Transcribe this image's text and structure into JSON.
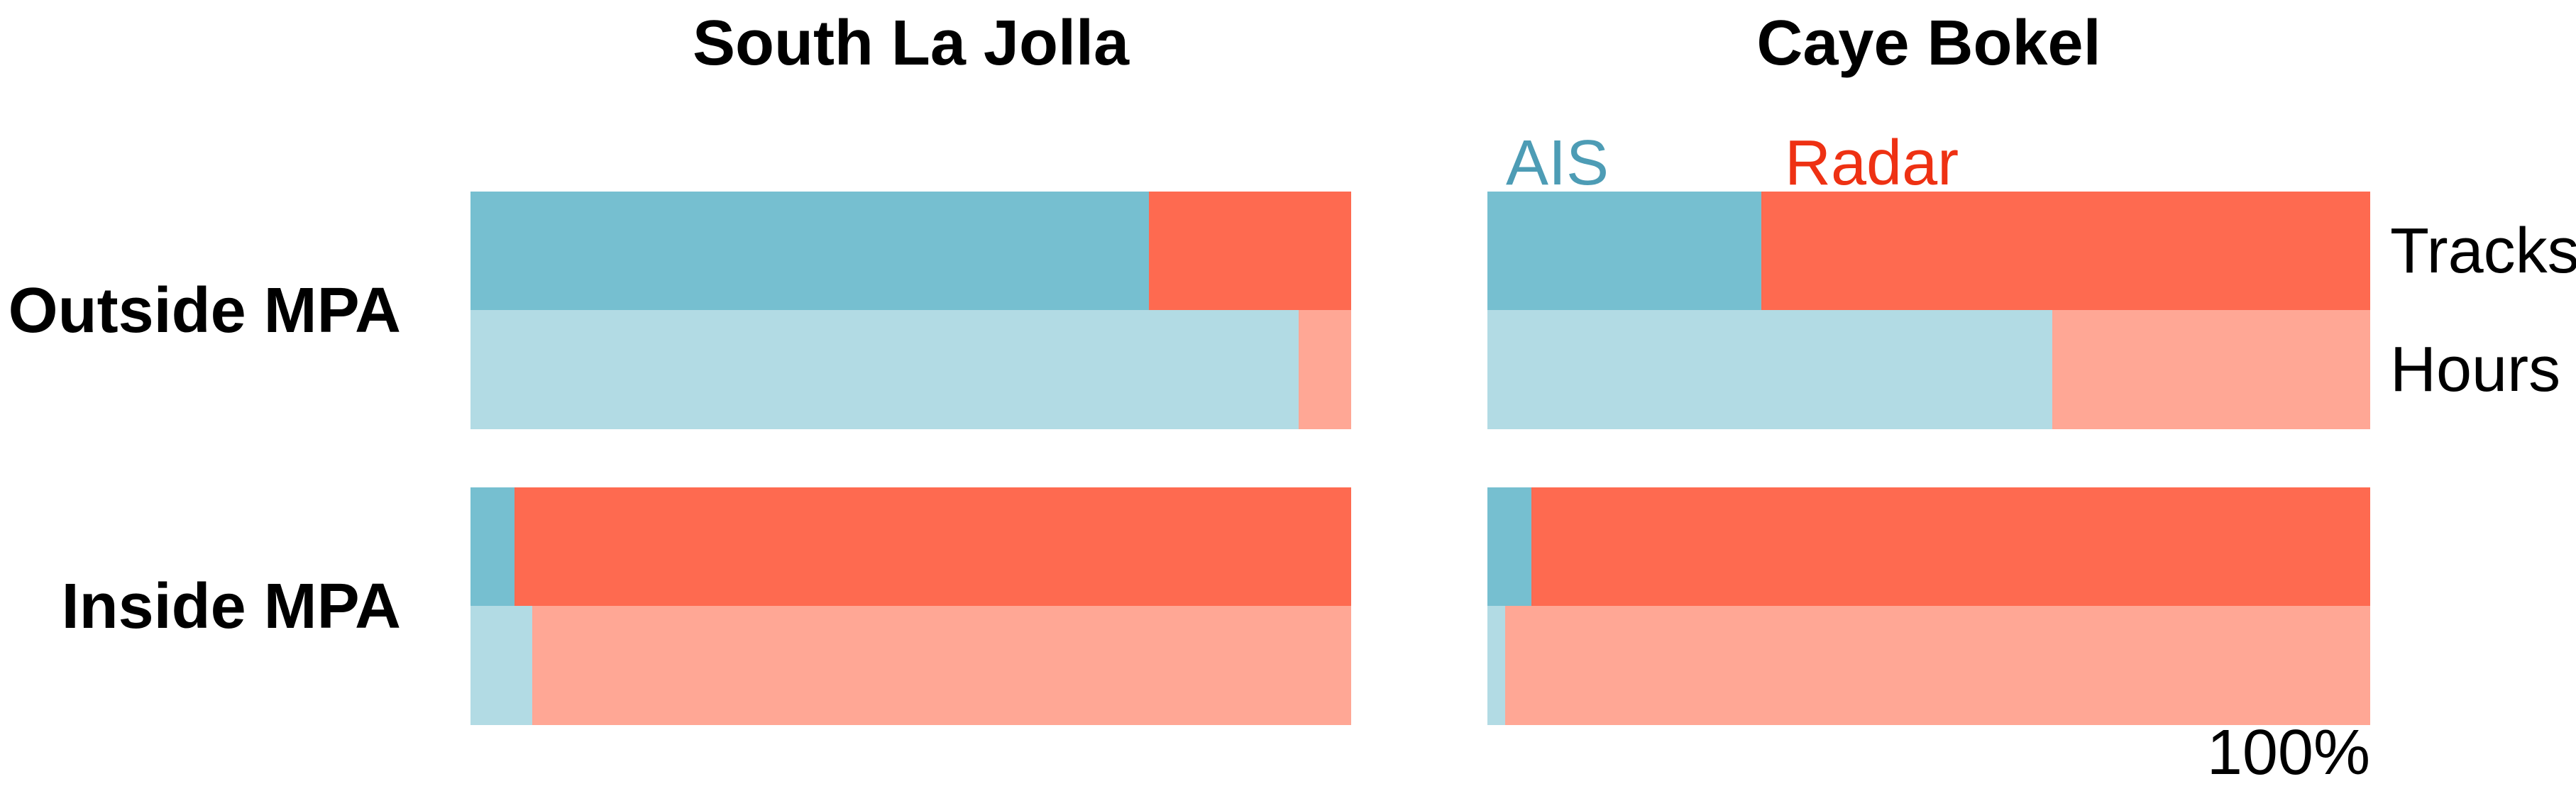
{
  "chart_data": {
    "type": "bar",
    "orientation": "horizontal",
    "stacked": true,
    "unit": "percent of total",
    "xlim": [
      0,
      100
    ],
    "grid": false,
    "axis_max_label": "100%",
    "legend": {
      "ais": "AIS",
      "radar": "Radar",
      "position": "top of right panel"
    },
    "row_labels": [
      "Outside MPA",
      "Inside MPA"
    ],
    "bar_labels": [
      "Tracks",
      "Hours"
    ],
    "panels": [
      {
        "title": "South La Jolla",
        "rows": [
          {
            "label": "Outside MPA",
            "bars": [
              {
                "label": "Tracks",
                "series": {
                  "AIS": 77,
                  "Radar": 23
                }
              },
              {
                "label": "Hours",
                "series": {
                  "AIS": 94,
                  "Radar": 6
                }
              }
            ]
          },
          {
            "label": "Inside MPA",
            "bars": [
              {
                "label": "Tracks",
                "series": {
                  "AIS": 5,
                  "Radar": 95
                }
              },
              {
                "label": "Hours",
                "series": {
                  "AIS": 7,
                  "Radar": 93
                }
              }
            ]
          }
        ]
      },
      {
        "title": "Caye Bokel",
        "rows": [
          {
            "label": "Outside MPA",
            "bars": [
              {
                "label": "Tracks",
                "series": {
                  "AIS": 31,
                  "Radar": 69
                }
              },
              {
                "label": "Hours",
                "series": {
                  "AIS": 64,
                  "Radar": 36
                }
              }
            ]
          },
          {
            "label": "Inside MPA",
            "bars": [
              {
                "label": "Tracks",
                "series": {
                  "AIS": 5,
                  "Radar": 95
                }
              },
              {
                "label": "Hours",
                "series": {
                  "AIS": 2,
                  "Radar": 98
                }
              }
            ]
          }
        ]
      }
    ],
    "colors": {
      "ais_tracks": "#76bfd0",
      "radar_tracks": "#fe6a50",
      "ais_hours": "#b2dbe4",
      "radar_hours": "#ffa795",
      "legend_ais_text": "#4d9cb5",
      "legend_radar_text": "#ee3113",
      "label_text": "#000000"
    }
  }
}
